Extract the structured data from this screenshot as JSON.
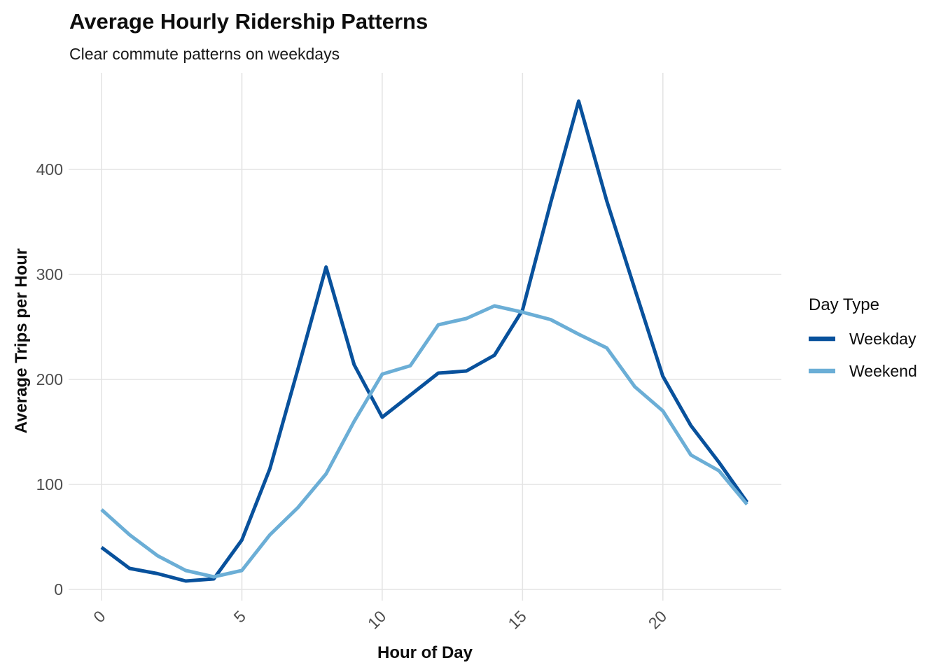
{
  "chart_data": {
    "type": "line",
    "title": "Average Hourly Ridership Patterns",
    "subtitle": "Clear commute patterns on weekdays",
    "xlabel": "Hour of Day",
    "ylabel": "Average Trips per Hour",
    "x": [
      0,
      1,
      2,
      3,
      4,
      5,
      6,
      7,
      8,
      9,
      10,
      11,
      12,
      13,
      14,
      15,
      16,
      17,
      18,
      19,
      20,
      21,
      22,
      23
    ],
    "series": [
      {
        "name": "Weekday",
        "color": "#08519C",
        "values": [
          40,
          20,
          15,
          8,
          10,
          47,
          115,
          210,
          307,
          214,
          164,
          185,
          206,
          208,
          223,
          266,
          368,
          465,
          370,
          286,
          203,
          156,
          121,
          83
        ]
      },
      {
        "name": "Weekend",
        "color": "#6BAED6",
        "values": [
          76,
          52,
          32,
          18,
          12,
          18,
          52,
          78,
          110,
          160,
          205,
          213,
          252,
          258,
          270,
          264,
          257,
          243,
          230,
          193,
          170,
          128,
          113,
          81
        ]
      }
    ],
    "legend": {
      "title": "Day Type",
      "position": "right",
      "entries": [
        "Weekday",
        "Weekend"
      ]
    },
    "x_ticks": [
      0,
      5,
      10,
      15,
      20
    ],
    "y_ticks": [
      0,
      100,
      200,
      300,
      400
    ],
    "xlim": [
      0,
      23
    ],
    "ylim": [
      0,
      470
    ],
    "grid": "major-only",
    "grid_color": "#E4E4E4",
    "tick_label_color": "#4d4d4d"
  }
}
